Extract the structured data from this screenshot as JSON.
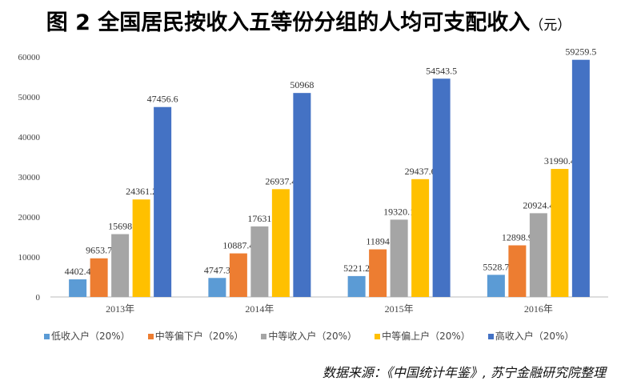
{
  "chart_data": {
    "type": "bar",
    "title": "图 2  全国居民按收入五等份分组的人均可支配收入",
    "title_unit": "（元）",
    "categories": [
      "2013年",
      "2014年",
      "2015年",
      "2016年"
    ],
    "ylim": [
      0,
      60000
    ],
    "yticks": [
      0,
      10000,
      20000,
      30000,
      40000,
      50000,
      60000
    ],
    "grid": false,
    "legend_position": "bottom",
    "series": [
      {
        "name": "低收入户（20%）",
        "color": "#5B9BD5",
        "values": [
          4402.4,
          4747.3,
          5221.2,
          5528.7
        ]
      },
      {
        "name": "中等偏下户（20%）",
        "color": "#ED7D31",
        "values": [
          9653.7,
          10887.4,
          11894,
          12898.9
        ]
      },
      {
        "name": "中等收入户（20%）",
        "color": "#A5A5A5",
        "values": [
          15698,
          17631,
          19320.1,
          20924.4
        ]
      },
      {
        "name": "中等偏上户（20%）",
        "color": "#FFC000",
        "values": [
          24361.2,
          26937.4,
          29437.6,
          31990.4
        ]
      },
      {
        "name": "高收入户（20%）",
        "color": "#4472C4",
        "values": [
          47456.6,
          50968,
          54543.5,
          59259.5
        ]
      }
    ],
    "source": "数据来源：《中国统计年鉴》, 苏宁金融研究院整理"
  }
}
